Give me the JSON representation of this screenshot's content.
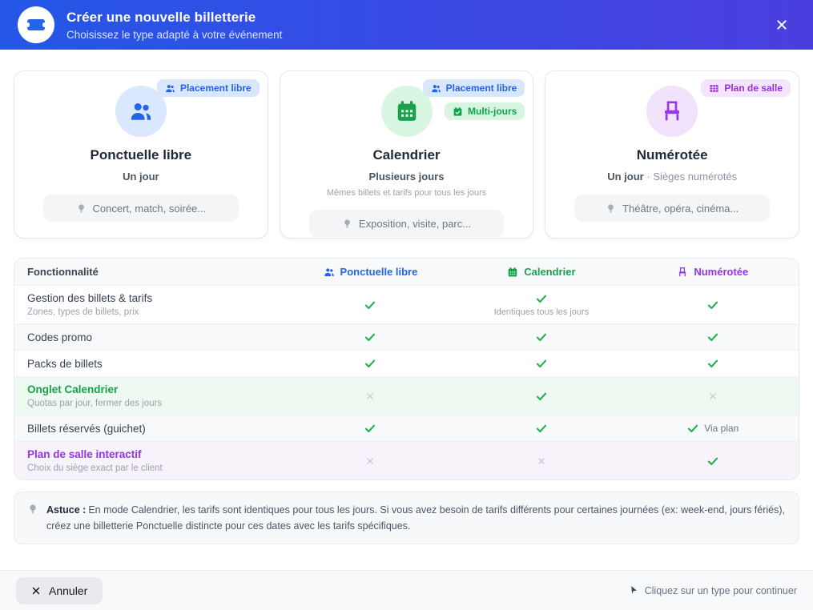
{
  "modal": {
    "title": "Créer une nouvelle billetterie",
    "subtitle": "Choisissez le type adapté à votre événement"
  },
  "cards": [
    {
      "title": "Ponctuelle libre",
      "subtitle": "Un jour",
      "example": "Concert, match, soirée...",
      "icon": "users-icon",
      "accent": "#2563eb",
      "badges": [
        {
          "label": "Placement libre",
          "icon": "users-icon"
        }
      ]
    },
    {
      "title": "Calendrier",
      "subtitle": "Plusieurs jours",
      "description": "Mêmes billets et tarifs pour tous les jours",
      "example": "Exposition, visite, parc...",
      "icon": "calendar-icon",
      "accent": "#16a34a",
      "badges": [
        {
          "label": "Placement libre",
          "icon": "users-icon"
        },
        {
          "label": "Multi-jours",
          "icon": "calendar-check-icon"
        }
      ]
    },
    {
      "title": "Numérotée",
      "subtitle": {
        "strong": "Un jour",
        "sep": "·",
        "rest": "Sièges numérotés"
      },
      "example": "Théâtre, opéra, cinéma...",
      "icon": "chair-icon",
      "accent": "#9333ea",
      "badges": [
        {
          "label": "Plan de salle",
          "icon": "grid-icon"
        }
      ]
    }
  ],
  "table": {
    "columns": {
      "feature": "Fonctionnalité",
      "ponctuelle": "Ponctuelle libre",
      "calendrier": "Calendrier",
      "numerotee": "Numérotée"
    },
    "rows": [
      {
        "feature": "Gestion des billets & tarifs",
        "sub": "Zones, types de billets, prix",
        "ponctuelle": "yes",
        "calendrier": "yes",
        "calendrier_note": "Identiques tous les jours",
        "numerotee": "yes"
      },
      {
        "feature": "Codes promo",
        "ponctuelle": "yes",
        "calendrier": "yes",
        "numerotee": "yes"
      },
      {
        "feature": "Packs de billets",
        "ponctuelle": "yes",
        "calendrier": "yes",
        "numerotee": "yes"
      },
      {
        "feature": "Onglet Calendrier",
        "sub": "Quotas par jour, fermer des jours",
        "ponctuelle": "no",
        "calendrier": "yes",
        "numerotee": "no",
        "highlight": "green"
      },
      {
        "feature": "Billets réservés (guichet)",
        "ponctuelle": "yes",
        "calendrier": "yes",
        "numerotee": "yes",
        "numerotee_note": "Via plan"
      },
      {
        "feature": "Plan de salle interactif",
        "sub": "Choix du siège exact par le client",
        "ponctuelle": "no",
        "calendrier": "no",
        "numerotee": "yes",
        "highlight": "purple"
      }
    ]
  },
  "tip": {
    "label": "Astuce :",
    "text": "En mode Calendrier, les tarifs sont identiques pour tous les jours. Si vous avez besoin de tarifs différents pour certaines journées (ex: week-end, jours fériés), créez une billetterie Ponctuelle distincte pour ces dates avec les tarifs spécifiques."
  },
  "footer": {
    "cancel": "Annuler",
    "hint": "Cliquez sur un type pour continuer"
  },
  "colors": {
    "header_gradient_start": "#2457e7",
    "header_gradient_end": "#4b3edf",
    "blue": "#2563eb",
    "green": "#16a34a",
    "purple": "#9333ea",
    "check_green": "#24b152",
    "cross_gray": "#c7ccd5"
  }
}
